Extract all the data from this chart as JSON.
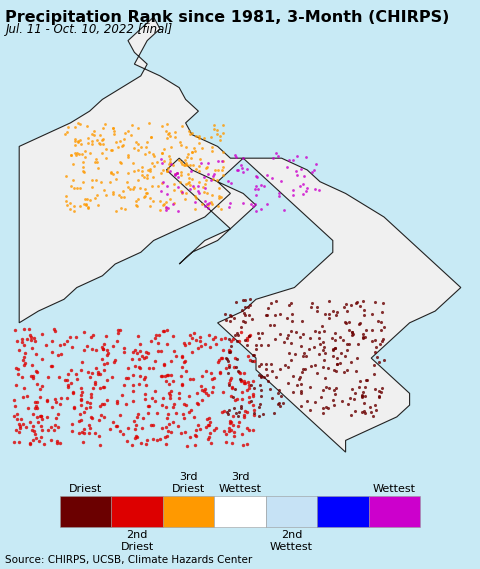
{
  "title": "Precipitation Rank since 1981, 3-Month (CHIRPS)",
  "subtitle": "Jul. 11 - Oct. 10, 2022 [final]",
  "source": "Source: CHIRPS, UCSB, Climate Hazards Center",
  "bg_color": "#c8eaf5",
  "map_bg_color": "#c8eaf5",
  "legend_bg_color": "#e8e8e8",
  "outside_land_color": "#d8d8d8",
  "africa_base_color": "#f0f0f0",
  "border_color_major": "#222222",
  "border_color_minor": "#888888",
  "legend_colors": [
    "#6b0000",
    "#dd0000",
    "#ff9900",
    "#ffffff",
    "#c6e2f5",
    "#0000ff",
    "#cc00cc"
  ],
  "title_fontsize": 11.5,
  "subtitle_fontsize": 8.5,
  "source_fontsize": 7.5,
  "legend_fontsize": 8.0
}
